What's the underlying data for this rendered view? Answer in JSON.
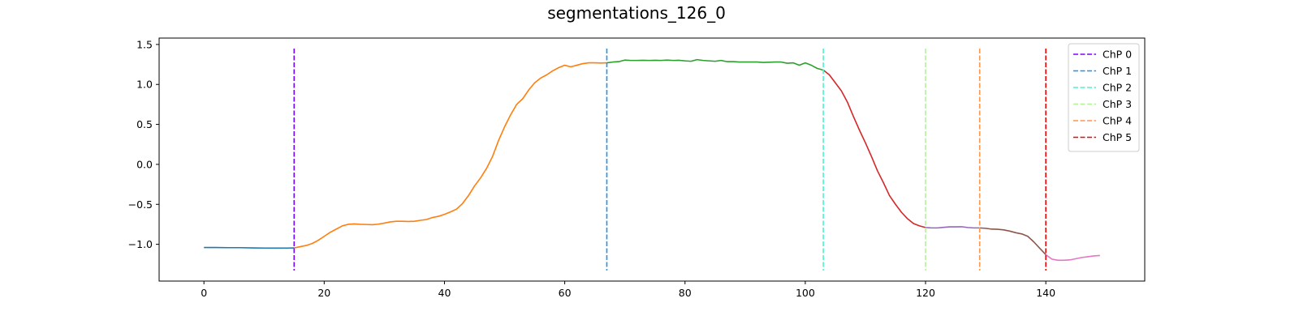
{
  "chart_data": {
    "type": "line",
    "title": "segmentations_126_0",
    "xlim": [
      -7.45,
      156.45
    ],
    "ylim": [
      -1.46,
      1.58
    ],
    "x_ticks": [
      0,
      20,
      40,
      60,
      80,
      100,
      120,
      140
    ],
    "y_ticks": [
      -1.0,
      -0.5,
      0.0,
      0.5,
      1.0,
      1.5
    ],
    "x_tick_labels": [
      "0",
      "20",
      "40",
      "60",
      "80",
      "100",
      "120",
      "140"
    ],
    "y_tick_labels": [
      "−1.0",
      "−0.5",
      "0.0",
      "0.5",
      "1.0",
      "1.5"
    ],
    "grid": false,
    "legend_position": "top-right",
    "segments": [
      {
        "color": "#1f77b4",
        "points": [
          [
            0,
            -1.04
          ],
          [
            2,
            -1.04
          ],
          [
            4,
            -1.042
          ],
          [
            6,
            -1.042
          ],
          [
            8,
            -1.045
          ],
          [
            10,
            -1.047
          ],
          [
            12,
            -1.048
          ],
          [
            14,
            -1.047
          ],
          [
            15,
            -1.045
          ]
        ]
      },
      {
        "color": "#ff7f0e",
        "points": [
          [
            15,
            -1.045
          ],
          [
            16,
            -1.03
          ],
          [
            17,
            -1.015
          ],
          [
            18,
            -0.99
          ],
          [
            19,
            -0.95
          ],
          [
            20,
            -0.9
          ],
          [
            21,
            -0.85
          ],
          [
            22,
            -0.81
          ],
          [
            23,
            -0.77
          ],
          [
            24,
            -0.75
          ],
          [
            25,
            -0.745
          ],
          [
            26,
            -0.75
          ],
          [
            27,
            -0.752
          ],
          [
            28,
            -0.755
          ],
          [
            29,
            -0.748
          ],
          [
            30,
            -0.735
          ],
          [
            31,
            -0.72
          ],
          [
            32,
            -0.712
          ],
          [
            33,
            -0.712
          ],
          [
            34,
            -0.715
          ],
          [
            35,
            -0.712
          ],
          [
            36,
            -0.7
          ],
          [
            37,
            -0.69
          ],
          [
            38,
            -0.665
          ],
          [
            39,
            -0.65
          ],
          [
            40,
            -0.625
          ],
          [
            41,
            -0.595
          ],
          [
            42,
            -0.56
          ],
          [
            43,
            -0.49
          ],
          [
            44,
            -0.39
          ],
          [
            45,
            -0.27
          ],
          [
            46,
            -0.17
          ],
          [
            47,
            -0.05
          ],
          [
            48,
            0.1
          ],
          [
            49,
            0.3
          ],
          [
            50,
            0.47
          ],
          [
            51,
            0.62
          ],
          [
            52,
            0.75
          ],
          [
            53,
            0.82
          ],
          [
            54,
            0.93
          ],
          [
            55,
            1.02
          ],
          [
            56,
            1.08
          ],
          [
            57,
            1.12
          ],
          [
            58,
            1.17
          ],
          [
            59,
            1.21
          ],
          [
            60,
            1.24
          ],
          [
            61,
            1.22
          ],
          [
            62,
            1.24
          ],
          [
            63,
            1.26
          ],
          [
            64,
            1.27
          ],
          [
            65,
            1.27
          ],
          [
            66,
            1.268
          ],
          [
            67,
            1.27
          ]
        ]
      },
      {
        "color": "#2ca02c",
        "points": [
          [
            67,
            1.27
          ],
          [
            68,
            1.28
          ],
          [
            69,
            1.285
          ],
          [
            70,
            1.305
          ],
          [
            71,
            1.3
          ],
          [
            72,
            1.3
          ],
          [
            73,
            1.302
          ],
          [
            74,
            1.3
          ],
          [
            75,
            1.302
          ],
          [
            76,
            1.3
          ],
          [
            77,
            1.305
          ],
          [
            78,
            1.3
          ],
          [
            79,
            1.302
          ],
          [
            80,
            1.295
          ],
          [
            81,
            1.29
          ],
          [
            82,
            1.31
          ],
          [
            83,
            1.3
          ],
          [
            84,
            1.295
          ],
          [
            85,
            1.29
          ],
          [
            86,
            1.3
          ],
          [
            87,
            1.285
          ],
          [
            88,
            1.285
          ],
          [
            89,
            1.28
          ],
          [
            90,
            1.28
          ],
          [
            91,
            1.28
          ],
          [
            92,
            1.28
          ],
          [
            93,
            1.275
          ],
          [
            94,
            1.278
          ],
          [
            95,
            1.28
          ],
          [
            96,
            1.28
          ],
          [
            97,
            1.265
          ],
          [
            98,
            1.27
          ],
          [
            99,
            1.24
          ],
          [
            100,
            1.27
          ],
          [
            101,
            1.24
          ],
          [
            102,
            1.2
          ],
          [
            103,
            1.18
          ]
        ]
      },
      {
        "color": "#d62728",
        "points": [
          [
            103,
            1.18
          ],
          [
            104,
            1.12
          ],
          [
            105,
            1.02
          ],
          [
            106,
            0.92
          ],
          [
            107,
            0.78
          ],
          [
            108,
            0.6
          ],
          [
            109,
            0.43
          ],
          [
            110,
            0.27
          ],
          [
            111,
            0.1
          ],
          [
            112,
            -0.08
          ],
          [
            113,
            -0.23
          ],
          [
            114,
            -0.39
          ],
          [
            115,
            -0.5
          ],
          [
            116,
            -0.6
          ],
          [
            117,
            -0.68
          ],
          [
            118,
            -0.74
          ],
          [
            119,
            -0.77
          ],
          [
            120,
            -0.79
          ]
        ]
      },
      {
        "color": "#9467bd",
        "points": [
          [
            120,
            -0.79
          ],
          [
            121,
            -0.795
          ],
          [
            122,
            -0.795
          ],
          [
            123,
            -0.788
          ],
          [
            124,
            -0.782
          ],
          [
            125,
            -0.782
          ],
          [
            126,
            -0.78
          ],
          [
            127,
            -0.79
          ],
          [
            128,
            -0.795
          ],
          [
            129,
            -0.795
          ]
        ]
      },
      {
        "color": "#8c564b",
        "points": [
          [
            129,
            -0.795
          ],
          [
            130,
            -0.8
          ],
          [
            131,
            -0.81
          ],
          [
            132,
            -0.812
          ],
          [
            133,
            -0.82
          ],
          [
            134,
            -0.835
          ],
          [
            135,
            -0.855
          ],
          [
            136,
            -0.87
          ],
          [
            137,
            -0.9
          ],
          [
            138,
            -0.97
          ],
          [
            139,
            -1.05
          ],
          [
            140,
            -1.13
          ]
        ]
      },
      {
        "color": "#e377c2",
        "points": [
          [
            140,
            -1.13
          ],
          [
            141,
            -1.185
          ],
          [
            142,
            -1.2
          ],
          [
            143,
            -1.2
          ],
          [
            144,
            -1.195
          ],
          [
            145,
            -1.18
          ],
          [
            146,
            -1.165
          ],
          [
            147,
            -1.155
          ],
          [
            148,
            -1.145
          ],
          [
            149,
            -1.14
          ]
        ]
      }
    ],
    "change_points": [
      {
        "name": "ChP 0",
        "x": 15,
        "color": "#8000ff"
      },
      {
        "name": "ChP 1",
        "x": 67,
        "color": "#1996f3"
      },
      {
        "name": "ChP 2",
        "x": 103,
        "color": "#4df3ce"
      },
      {
        "name": "ChP 3",
        "x": 120,
        "color": "#b2f396"
      },
      {
        "name": "ChP 4",
        "x": 129,
        "color": "#ff964f"
      },
      {
        "name": "ChP 5",
        "x": 140,
        "color": "#ff0000"
      }
    ]
  }
}
